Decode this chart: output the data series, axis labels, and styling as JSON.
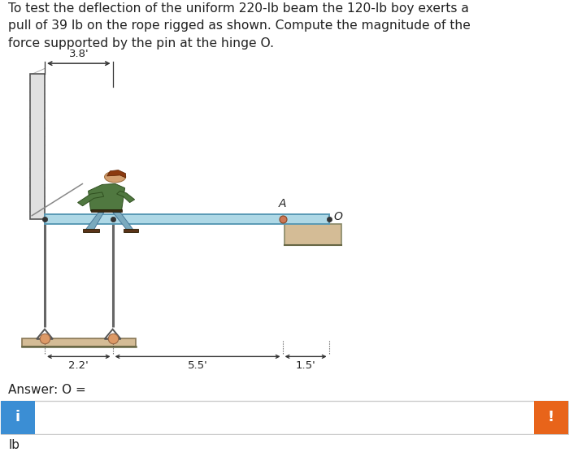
{
  "title_text": "To test the deflection of the uniform 220-lb beam the 120-lb boy exerts a\npull of 39 lb on the rope rigged as shown. Compute the magnitude of the\nforce supported by the pin at the hinge O.",
  "answer_text": "Answer: O =",
  "unit_text": "lb",
  "background_color": "#ffffff",
  "title_fontsize": 11.2,
  "dim_38": "3.8'",
  "dim_22": "2.2'",
  "dim_55": "5.5'",
  "dim_15": "1.5'",
  "label_A": "A",
  "label_O": "O",
  "beam_color": "#aed8e6",
  "beam_outline": "#5a9ab5",
  "wall_color": "#d4bc96",
  "frame_color": "#666666",
  "pin_color": "#d4956a",
  "support_color": "#d4bc96",
  "info_box_color": "#3b8ed4",
  "warn_box_color": "#e8641a",
  "input_border_color": "#cccccc"
}
